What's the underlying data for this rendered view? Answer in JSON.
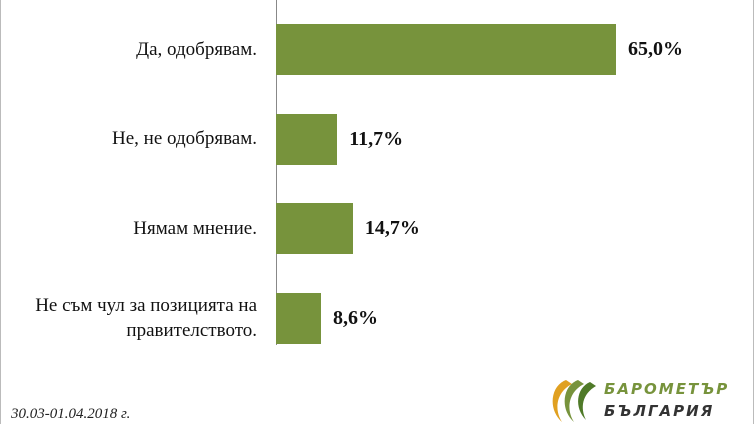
{
  "chart_data": {
    "type": "bar",
    "orientation": "horizontal",
    "categories": [
      "Да, одобрявам.",
      "Не, не одобрявам.",
      "Нямам мнение.",
      "Не съм чул за позицията на правителството."
    ],
    "values": [
      65.0,
      11.7,
      14.7,
      8.6
    ],
    "value_labels": [
      "65,0%",
      "11,7%",
      "14,7%",
      "8,6%"
    ],
    "color": "#77933c",
    "footnote": "30.03-01.04.2018 г.",
    "logo": [
      "БАРОМЕТЪР",
      "БЪЛГАРИЯ"
    ]
  }
}
